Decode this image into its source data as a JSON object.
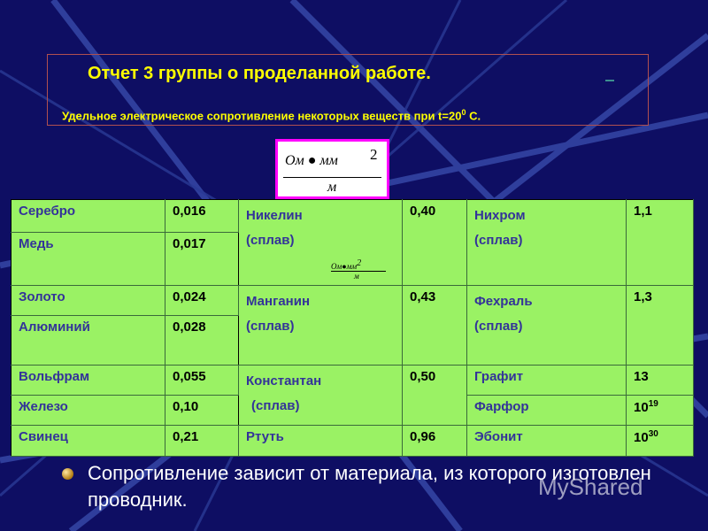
{
  "title": "Отчет 3 группы о проделанной работе.",
  "subtitle": "Удельное электрическое сопротивление некоторых веществ при t=20",
  "subtitle_sup": "0",
  "subtitle_end": " С.",
  "unit": {
    "numerator": "Ом ● мм",
    "exponent": "2",
    "denominator": "м"
  },
  "rows": {
    "r1": {
      "a_name": "Серебро",
      "a_val": "0,016",
      "b_name": "Никелин",
      "b_sub": "(сплав)",
      "b_val": "0,40",
      "c_name": "Нихром",
      "c_sub": "(сплав)",
      "c_val": "1,1"
    },
    "r2": {
      "a_name": "Медь",
      "a_val": "0,017"
    },
    "r3": {
      "a_name": "Золото",
      "a_val": "0,024",
      "b_name": "Манганин",
      "b_sub": "(сплав)",
      "b_val": "0,43",
      "c_name": "Фехраль",
      "c_sub": "(сплав)",
      "c_val": "1,3"
    },
    "r4": {
      "a_name": "Алюминий",
      "a_val": "0,028"
    },
    "r5": {
      "a_name": "Вольфрам",
      "a_val": "0,055",
      "b_name": "Константан",
      "b_sub": "(сплав)",
      "b_val": "0,50",
      "c_name": "Графит",
      "c_val": "13"
    },
    "r6": {
      "a_name": "Железо",
      "a_val": "0,10",
      "c_name": "Фарфор",
      "c_val_base": "10",
      "c_val_exp": "19"
    },
    "r7": {
      "a_name": "Свинец",
      "a_val": "0,21",
      "b_name": "Ртуть",
      "b_val": "0,96",
      "c_name": "Эбонит",
      "c_val_base": "10",
      "c_val_exp": "30"
    }
  },
  "mini_unit": {
    "numerator": "Ом●мм",
    "exponent": "2",
    "denominator": "м"
  },
  "bullet": "Сопротивление зависит от материала, из которого изготовлен проводник.",
  "watermark": "MyShared",
  "colors": {
    "background": "#0e0e63",
    "title": "#ffff00",
    "table": "#9af264",
    "unit_border": "#ff00ff"
  }
}
